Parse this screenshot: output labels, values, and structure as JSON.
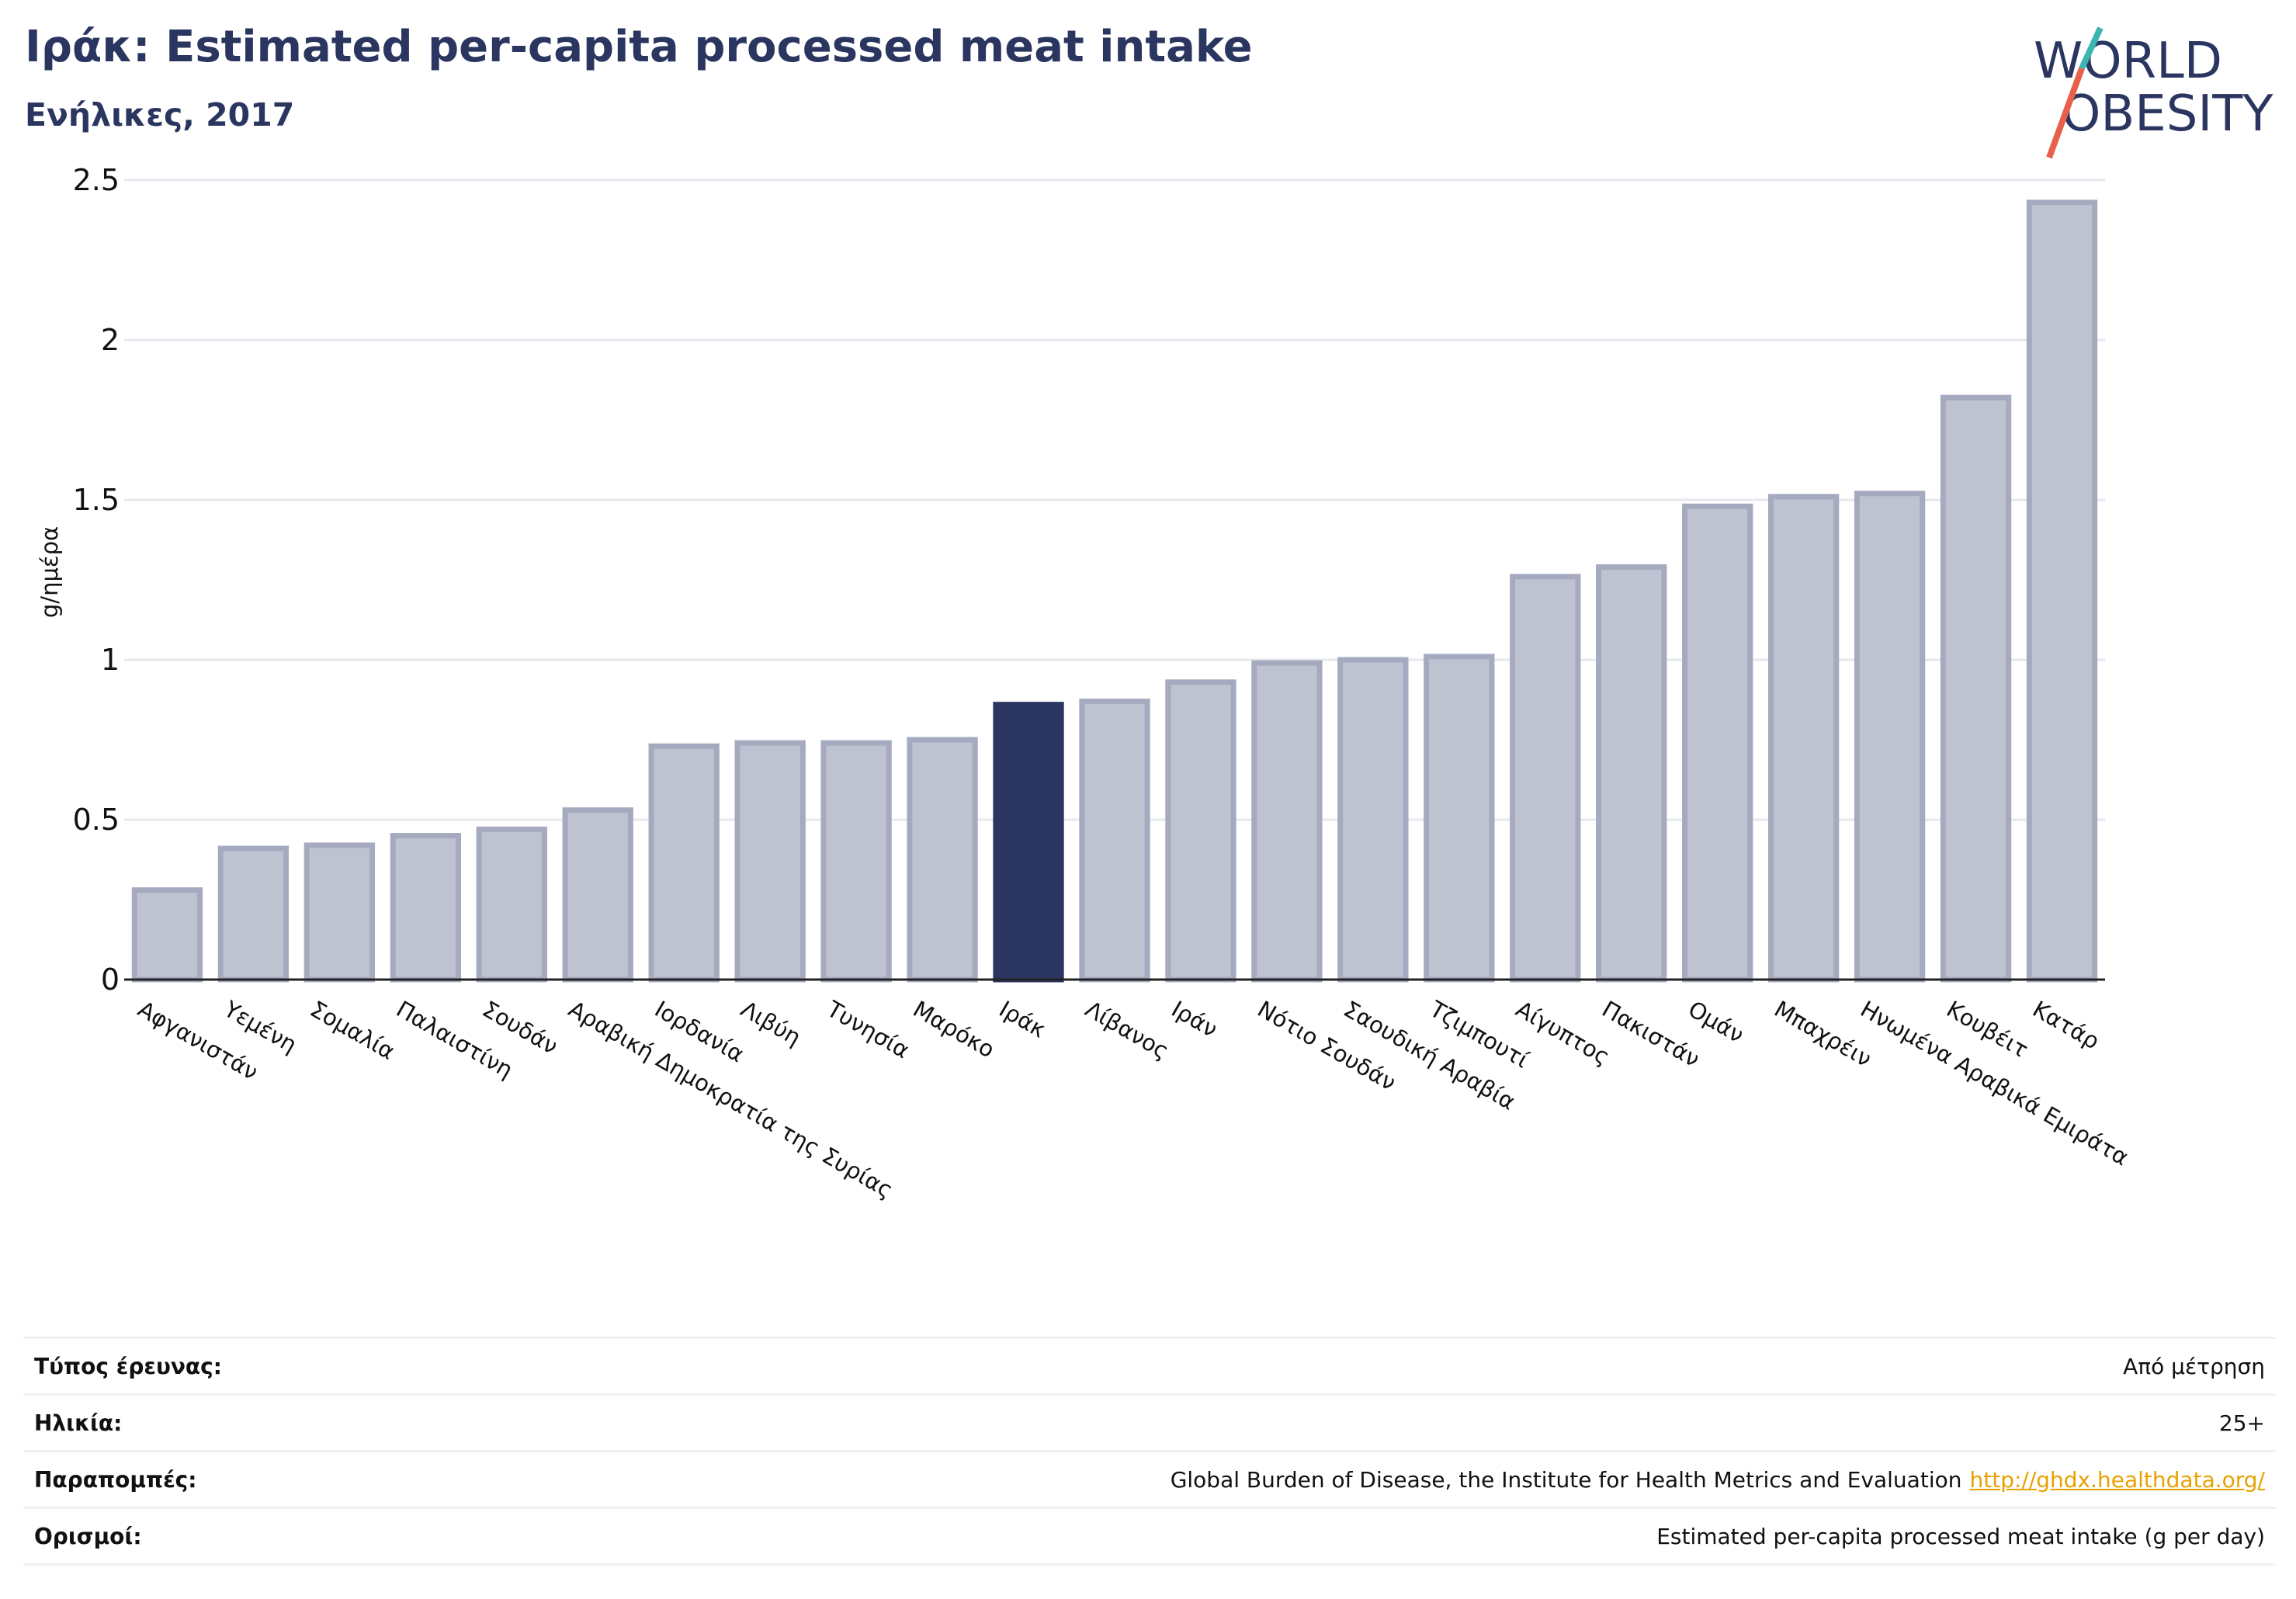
{
  "header": {
    "title": "Ιράκ: Estimated per-capita processed meat intake",
    "subtitle": "Ενήλικες, 2017"
  },
  "logo": {
    "line1": "WORLD",
    "line2": "OBESITY"
  },
  "colors": {
    "highlight": "#2b3660",
    "bar": "#bfc2d0",
    "bar_stroke": "#a5aabf",
    "title": "#2b3660",
    "logo_teal": "#3ab5b0",
    "logo_red": "#e8604c",
    "link": "#e8a200"
  },
  "chart_data": {
    "type": "bar",
    "ylabel": "g/ημέρα",
    "ylim": [
      0,
      2.5
    ],
    "yticks": [
      0,
      0.5,
      1,
      1.5,
      2,
      2.5
    ],
    "ytick_labels": [
      "0",
      "0.5",
      "1",
      "1.5",
      "2",
      "2.5"
    ],
    "grid": true,
    "highlight": "Ιράκ",
    "categories": [
      "Αφγανιστάν",
      "Υεμένη",
      "Σομαλία",
      "Παλαιστίνη",
      "Σουδάν",
      "Αραβική Δημοκρατία της Συρίας",
      "Ιορδανία",
      "Λιβύη",
      "Τυνησία",
      "Μαρόκο",
      "Ιράκ",
      "Λίβανος",
      "Ιράν",
      "Νότιο Σουδάν",
      "Σαουδική Αραβία",
      "Τζιμπουτί",
      "Αίγυπτος",
      "Πακιστάν",
      "Ομάν",
      "Μπαχρέιν",
      "Ηνωμένα Αραβικά Εμιράτα",
      "Κουβέιτ",
      "Κατάρ"
    ],
    "values": [
      0.28,
      0.41,
      0.42,
      0.45,
      0.47,
      0.53,
      0.73,
      0.74,
      0.74,
      0.75,
      0.86,
      0.87,
      0.93,
      0.99,
      1.0,
      1.01,
      1.26,
      1.29,
      1.48,
      1.51,
      1.52,
      1.82,
      2.43
    ]
  },
  "info": [
    {
      "key": "Τύπος έρευνας:",
      "value": "Από μέτρηση",
      "link": ""
    },
    {
      "key": "Ηλικία:",
      "value": "25+",
      "link": ""
    },
    {
      "key": "Παραπομπές:",
      "value": "Global Burden of Disease, the Institute for Health Metrics and Evaluation",
      "link": "http://ghdx.healthdata.org/"
    },
    {
      "key": "Ορισμοί:",
      "value": "Estimated per-capita processed meat intake (g per day)",
      "link": ""
    }
  ]
}
